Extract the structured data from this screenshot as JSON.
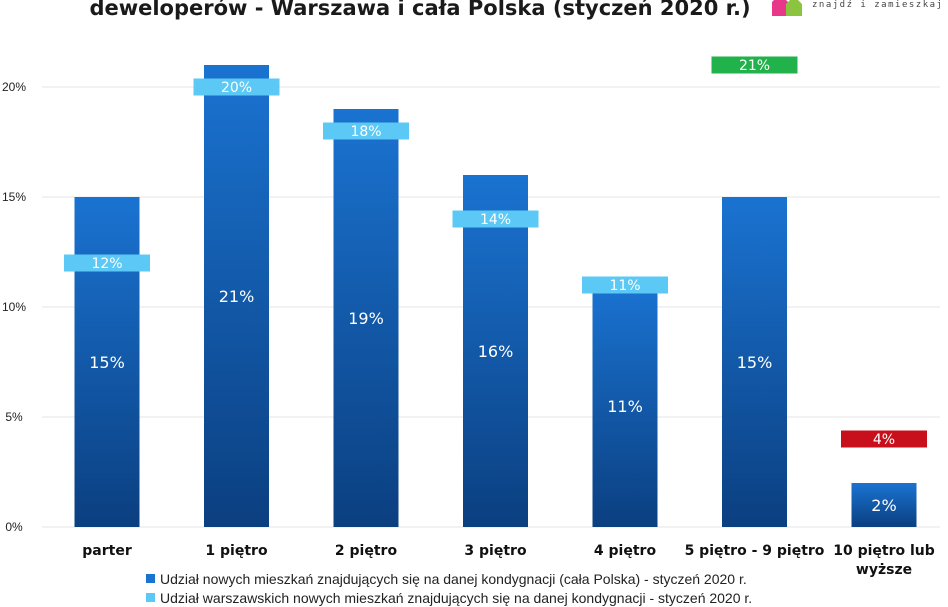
{
  "header": {
    "title": "deweloperów - Warszawa i cała Polska (styczeń 2020 r.)",
    "logo_tagline": "znajdź i zamieszkaj"
  },
  "colors": {
    "bar_top": "#1a73d1",
    "bar_bottom": "#0b3f80",
    "warsaw_label": "#5bc8f5",
    "high_label": "#22b24c",
    "low_label": "#c8101c",
    "grid": "#e6e6e6"
  },
  "chart_data": {
    "type": "bar",
    "title": "deweloperów - Warszawa i cała Polska (styczeń 2020 r.)",
    "categories": [
      "parter",
      "1 piętro",
      "2 piętro",
      "3 piętro",
      "4 piętro",
      "5 piętro - 9 piętro",
      "10 piętro lub wyższe"
    ],
    "ylim": [
      0,
      22
    ],
    "yticks": [
      0,
      5,
      10,
      15,
      20
    ],
    "ytick_labels": [
      "0%",
      "5%",
      "10%",
      "15%",
      "20%"
    ],
    "series": [
      {
        "name": "Udział nowych mieszkań znajdujących się na danej kondygnacji (cała Polska) - styczeń 2020 r.",
        "values": [
          15,
          21,
          19,
          16,
          11,
          15,
          2
        ],
        "labels": [
          "15%",
          "21%",
          "19%",
          "16%",
          "11%",
          "15%",
          "2%"
        ]
      },
      {
        "name": "Udział warszawskich nowych mieszkań znajdujących się na danej kondygnacji - styczeń 2020 r.",
        "values": [
          12,
          20,
          18,
          14,
          11,
          21,
          4
        ],
        "labels": [
          "12%",
          "20%",
          "18%",
          "14%",
          "11%",
          "21%",
          "4%"
        ]
      }
    ],
    "legend": [
      {
        "label": "Udział nowych mieszkań znajdujących się na danej kondygnacji (cała Polska) - styczeń 2020 r."
      },
      {
        "label": "Udział warszawskich nowych mieszkań znajdujących się na danej kondygnacji - styczeń 2020 r."
      }
    ]
  }
}
